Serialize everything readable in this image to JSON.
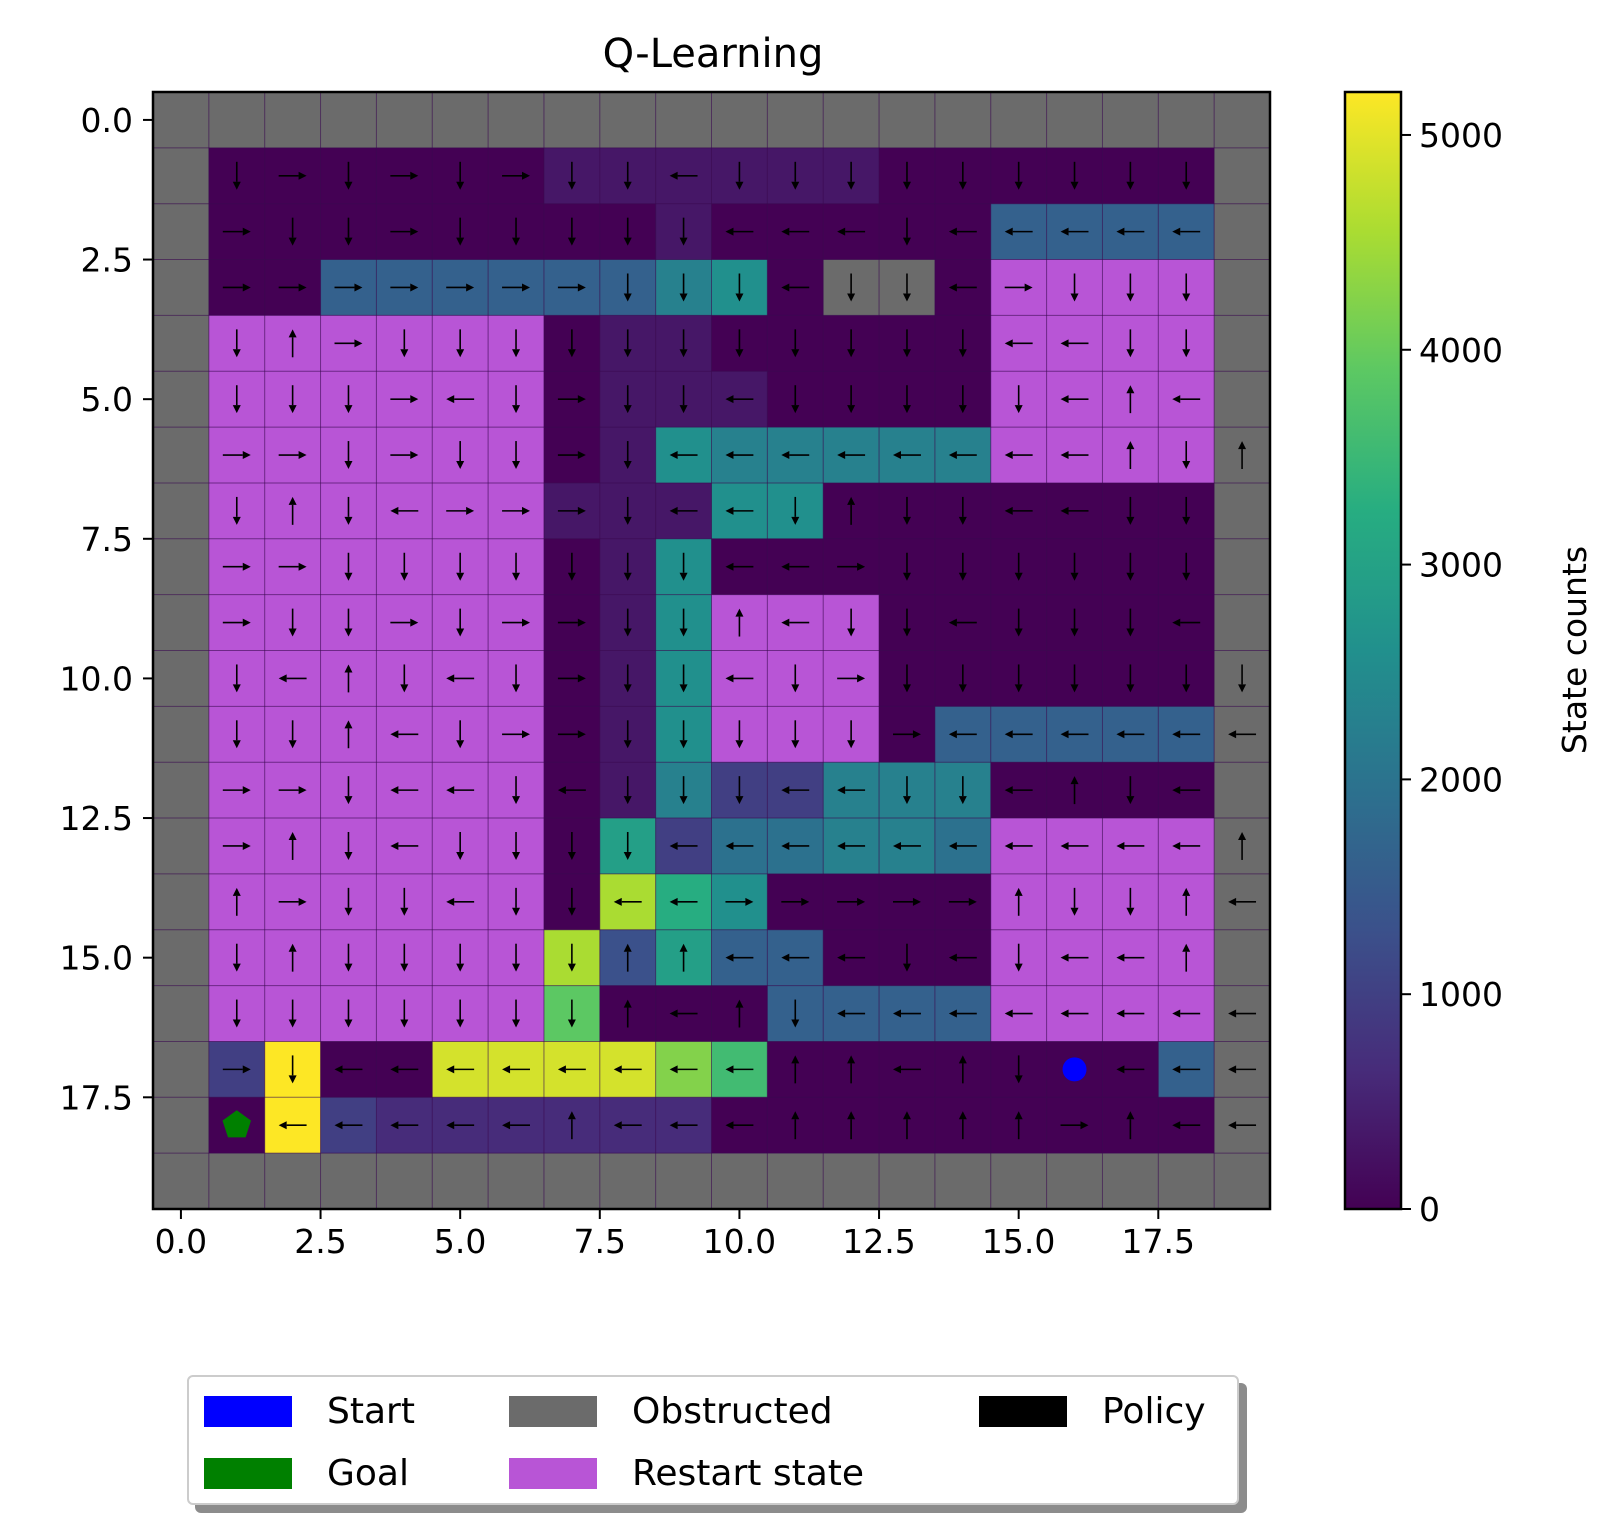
{
  "chart_data": {
    "type": "heatmap",
    "title": "Q-Learning",
    "grid_size": 20,
    "xlim": [
      -0.5,
      19.5
    ],
    "ylim": [
      19.5,
      -0.5
    ],
    "x_ticks": [
      "0.0",
      "2.5",
      "5.0",
      "7.5",
      "10.0",
      "12.5",
      "15.0",
      "17.5"
    ],
    "y_ticks": [
      "0.0",
      "2.5",
      "5.0",
      "7.5",
      "10.0",
      "12.5",
      "15.0",
      "17.5"
    ],
    "colorbar": {
      "label": "State counts",
      "colormap": "viridis",
      "range": [
        0,
        5200
      ],
      "ticks": [
        "0",
        "1000",
        "2000",
        "3000",
        "4000",
        "5000"
      ]
    },
    "start": {
      "x": 16,
      "y": 17,
      "color": "#0000ff"
    },
    "goal": {
      "x": 1,
      "y": 18,
      "color": "#008000"
    },
    "colors": {
      "obstructed": "#6b6b6b",
      "restart": "#b855d6",
      "policy": "#000000"
    },
    "restart_regions": [
      {
        "rows": [
          4,
          16
        ],
        "cols": [
          1,
          6
        ]
      },
      {
        "rows": [
          3,
          6
        ],
        "cols": [
          15,
          18
        ]
      },
      {
        "rows": [
          9,
          11
        ],
        "cols": [
          10,
          12
        ]
      },
      {
        "rows": [
          13,
          16
        ],
        "cols": [
          15,
          18
        ]
      }
    ],
    "visit_counts": [
      "....................",
      ".000000111111000000.",
      ".0000000010000055551.",
      ".00555555780..000000.",
      ".000000011000000.0..",
      ".0000000111000000...",
      ".000000018777777700.",
      ".0000001118800000000.",
      ".000000018000000000.",
      ".000000018000000000.",
      ".000000018000000000.",
      ".000000018000055555.",
      ".000000017337770000.",
      ".000000093667766000.",
      ".0000000fa800000000.",
      ".000000f4955000000.",
      ".000000c00055556000.",
      ".3o00lllldb0000000500.",
      ".0o3222222000000000.",
      "...................."
    ],
    "policy": [
      "....................",
      ".DRDRDRDDLDDDDDDDDD.",
      ".RDDRDDDDDLLLDLLLLL.",
      ".RRRRRRRDDDLDDLRDDD.",
      ".DURDDDDDDDDDDDLLDD.",
      ".DDDRLDRDDLDDDDDLUL.",
      ".RRDRDDRDLLLLLLLLUDU.",
      ".DUDLRRRDLLDUDDLLDD.",
      ".RRDDDDDDDLLRDDDDDD.",
      ".RDDRDRRDDULDDLDDDL.",
      ".DLUDLDRDDLDRDDDDDDD.",
      ".DDULDRRDDDDDRLLLLLL.",
      ".RRDLLDLDDDLLDDLUDL.",
      ".RUDLDDDDLLLLLLLLLLU.",
      ".URDDLDDLLRRRRRUDDUL.",
      ".DUDDDDDUULLLDLDLLU.",
      ".DDDDDDDULUDLLLLLLLL.",
      ".RDLLLLLLLLUULUDLLLL.",
      ".LLLLLLULLLUUUUURULL.",
      "...................."
    ]
  },
  "legend": {
    "items": [
      {
        "label": "Start",
        "color": "#0000ff"
      },
      {
        "label": "Goal",
        "color": "#008000"
      },
      {
        "label": "Obstructed",
        "color": "#6b6b6b"
      },
      {
        "label": "Restart state",
        "color": "#b855d6"
      },
      {
        "label": "Policy",
        "color": "#000000"
      }
    ]
  }
}
